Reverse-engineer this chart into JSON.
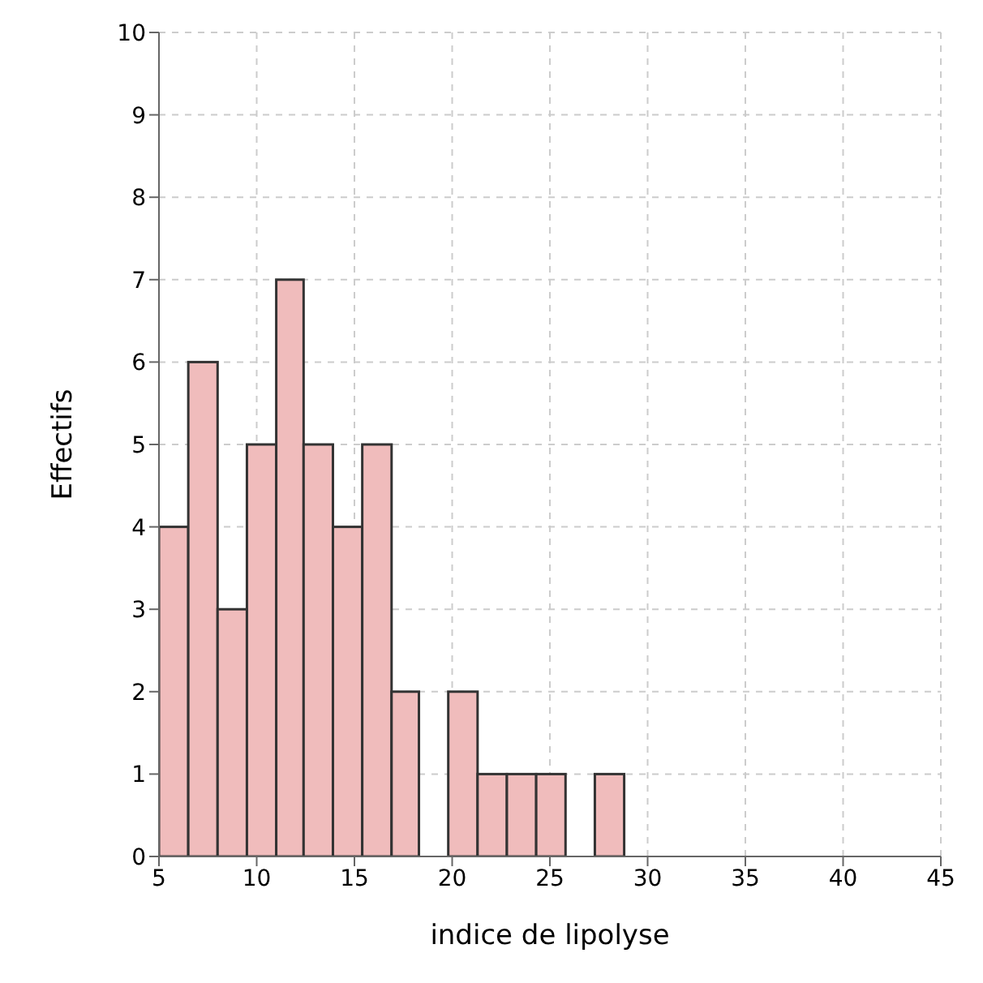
{
  "chart_data": {
    "type": "histogram",
    "xlabel": "indice de lipolyse",
    "ylabel": "Effectifs",
    "bins": [
      5,
      6.5,
      8,
      9.5,
      11,
      12.4,
      13.9,
      15.4,
      16.9,
      18.3,
      19.8,
      21.3,
      22.8,
      24.3,
      25.8,
      27.3,
      28.8
    ],
    "values": [
      4,
      6,
      3,
      5,
      7,
      5,
      4,
      5,
      2,
      0,
      2,
      1,
      1,
      1,
      0,
      1
    ],
    "color": "#f0bcbc",
    "xlim": [
      5,
      45
    ],
    "xticks": [
      5,
      10,
      15,
      20,
      25,
      30,
      35,
      40,
      45
    ],
    "ylim": [
      0,
      10
    ],
    "yticks": [
      0,
      1,
      2,
      3,
      4,
      5,
      6,
      7,
      8,
      9,
      10
    ],
    "grid": true
  }
}
